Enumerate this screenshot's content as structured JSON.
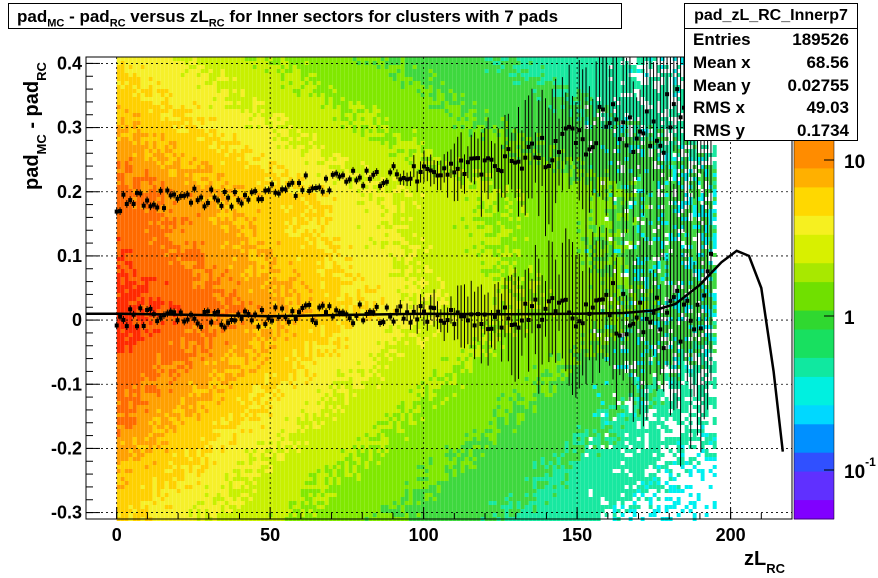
{
  "title": {
    "parts": [
      "pad",
      "MC",
      " - pad",
      "RC",
      " versus zL",
      "RC",
      " for Inner sectors for clusters with 7 pads"
    ]
  },
  "stats": {
    "name": "pad_zL_RC_Innerp7",
    "rows": [
      {
        "label": "Entries",
        "value": "189526"
      },
      {
        "label": "Mean x",
        "value": "68.56"
      },
      {
        "label": "Mean y",
        "value": "0.02755"
      },
      {
        "label": "RMS x",
        "value": "49.03"
      },
      {
        "label": "RMS y",
        "value": "0.1734"
      }
    ]
  },
  "chart_data": {
    "type": "heatmap",
    "xlabel": "zL_RC",
    "ylabel": "pad_MC - pad_RC",
    "xlim": [
      -10,
      220
    ],
    "ylim": [
      -0.31,
      0.41
    ],
    "xticks": [
      "0",
      "50",
      "100",
      "150",
      "200"
    ],
    "yticks": [
      "-0.3",
      "-0.2",
      "-0.1",
      "0",
      "0.1",
      "0.2",
      "0.3",
      "0.4"
    ],
    "grid": true,
    "heatmap_xrange": [
      0,
      195
    ],
    "colorbar": {
      "scale": "log",
      "labels": [
        "10",
        "1",
        "10^-1"
      ],
      "range": [
        0.05,
        20
      ]
    },
    "upper_profile": {
      "x": [
        0,
        20,
        40,
        60,
        80,
        100,
        120,
        140,
        150,
        160,
        170,
        180,
        190
      ],
      "y": [
        0.18,
        0.19,
        0.19,
        0.21,
        0.22,
        0.23,
        0.24,
        0.26,
        0.28,
        0.31,
        0.3,
        0.31,
        0.36
      ]
    },
    "central_profile": {
      "x": [
        0,
        20,
        40,
        60,
        80,
        100,
        120,
        140,
        160,
        180,
        195
      ],
      "y": [
        0.005,
        0.005,
        0.0,
        0.01,
        0.01,
        0.01,
        0.0,
        0.01,
        0.02,
        0.0,
        0.05
      ]
    },
    "fit_curve": {
      "x": [
        -10,
        0,
        25,
        50,
        75,
        100,
        125,
        150,
        165,
        175,
        182,
        190,
        197,
        202,
        206,
        210,
        214,
        217
      ],
      "y": [
        0.01,
        0.01,
        0.008,
        0.006,
        0.008,
        0.01,
        0.009,
        0.01,
        0.011,
        0.015,
        0.025,
        0.055,
        0.09,
        0.108,
        0.1,
        0.05,
        -0.08,
        -0.205
      ]
    }
  }
}
